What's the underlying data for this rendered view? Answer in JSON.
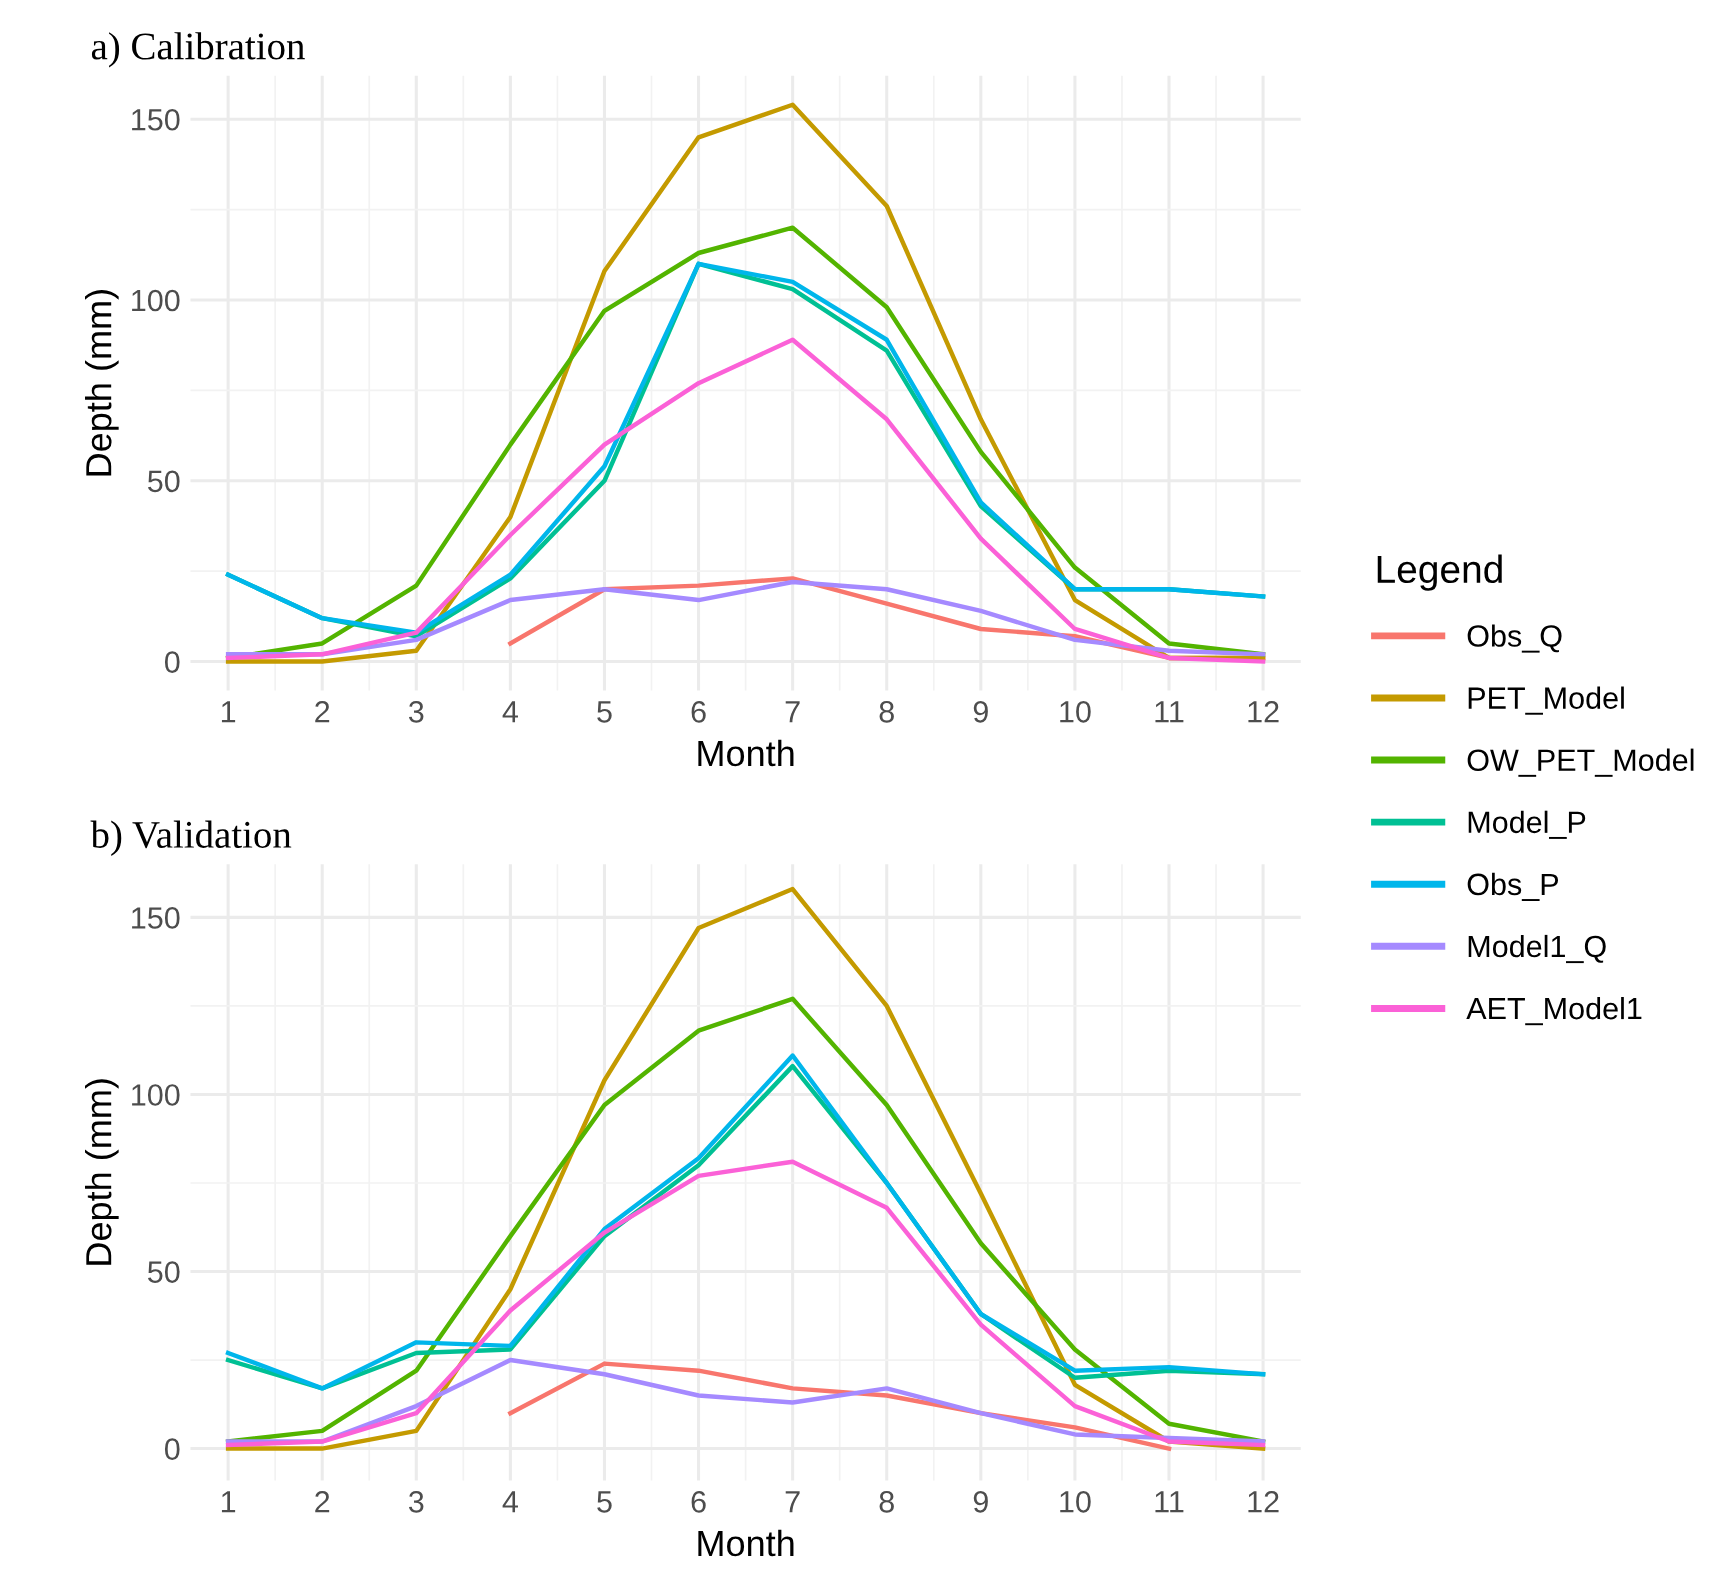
{
  "chart_data": [
    {
      "type": "line",
      "title": "a) Calibration",
      "xlabel": "Month",
      "ylabel": "Depth (mm)",
      "legend_title": "Legend",
      "legend": "right",
      "x": [
        1,
        2,
        3,
        4,
        5,
        6,
        7,
        8,
        9,
        10,
        11,
        12
      ],
      "xlim": [
        0.6,
        12.4
      ],
      "xticks": [
        1,
        2,
        3,
        4,
        5,
        6,
        7,
        8,
        9,
        10,
        11,
        12
      ],
      "ylim": [
        -8,
        162
      ],
      "yticks": [
        0,
        50,
        100,
        150
      ],
      "grid": true,
      "series": [
        {
          "name": "Obs_Q",
          "color": "#f8766d",
          "values": [
            null,
            null,
            null,
            5,
            20,
            21,
            23,
            16,
            9,
            7,
            1,
            1
          ]
        },
        {
          "name": "PET_Model",
          "color": "#c49a00",
          "values": [
            0,
            0,
            3,
            40,
            108,
            145,
            154,
            126,
            67,
            17,
            1,
            1
          ]
        },
        {
          "name": "OW_PET_Model",
          "color": "#53b400",
          "values": [
            1,
            5,
            21,
            60,
            97,
            113,
            120,
            98,
            58,
            26,
            5,
            2
          ]
        },
        {
          "name": "Model_P",
          "color": "#00c094",
          "values": [
            24,
            12,
            7,
            23,
            50,
            110,
            103,
            86,
            43,
            20,
            20,
            18
          ]
        },
        {
          "name": "Obs_P",
          "color": "#00b6eb",
          "values": [
            24,
            12,
            8,
            24,
            54,
            110,
            105,
            89,
            44,
            20,
            20,
            18
          ]
        },
        {
          "name": "Model1_Q",
          "color": "#a58aff",
          "values": [
            2,
            2,
            6,
            17,
            20,
            17,
            22,
            20,
            14,
            6,
            3,
            2
          ]
        },
        {
          "name": "AET_Model1",
          "color": "#fb61d7",
          "values": [
            1,
            2,
            8,
            35,
            60,
            77,
            89,
            67,
            34,
            9,
            1,
            0
          ]
        }
      ]
    },
    {
      "type": "line",
      "title": "b) Validation",
      "xlabel": "Month",
      "ylabel": "Depth (mm)",
      "x": [
        1,
        2,
        3,
        4,
        5,
        6,
        7,
        8,
        9,
        10,
        11,
        12
      ],
      "xlim": [
        0.6,
        12.4
      ],
      "xticks": [
        1,
        2,
        3,
        4,
        5,
        6,
        7,
        8,
        9,
        10,
        11,
        12
      ],
      "ylim": [
        -9,
        165
      ],
      "yticks": [
        0,
        50,
        100,
        150
      ],
      "grid": true,
      "series": [
        {
          "name": "Obs_Q",
          "color": "#f8766d",
          "values": [
            null,
            null,
            null,
            10,
            24,
            22,
            17,
            15,
            10,
            6,
            0,
            null
          ]
        },
        {
          "name": "PET_Model",
          "color": "#c49a00",
          "values": [
            0,
            0,
            5,
            45,
            104,
            147,
            158,
            125,
            72,
            18,
            2,
            0
          ]
        },
        {
          "name": "OW_PET_Model",
          "color": "#53b400",
          "values": [
            2,
            5,
            22,
            60,
            97,
            118,
            127,
            97,
            58,
            28,
            7,
            2
          ]
        },
        {
          "name": "Model_P",
          "color": "#00c094",
          "values": [
            25,
            17,
            27,
            28,
            60,
            80,
            108,
            75,
            38,
            20,
            22,
            21
          ]
        },
        {
          "name": "Obs_P",
          "color": "#00b6eb",
          "values": [
            27,
            17,
            30,
            29,
            62,
            82,
            111,
            75,
            38,
            22,
            23,
            21
          ]
        },
        {
          "name": "Model1_Q",
          "color": "#a58aff",
          "values": [
            2,
            2,
            12,
            25,
            21,
            15,
            13,
            17,
            10,
            4,
            3,
            2
          ]
        },
        {
          "name": "AET_Model1",
          "color": "#fb61d7",
          "values": [
            1,
            2,
            10,
            39,
            61,
            77,
            81,
            68,
            35,
            12,
            2,
            1
          ]
        }
      ]
    }
  ]
}
